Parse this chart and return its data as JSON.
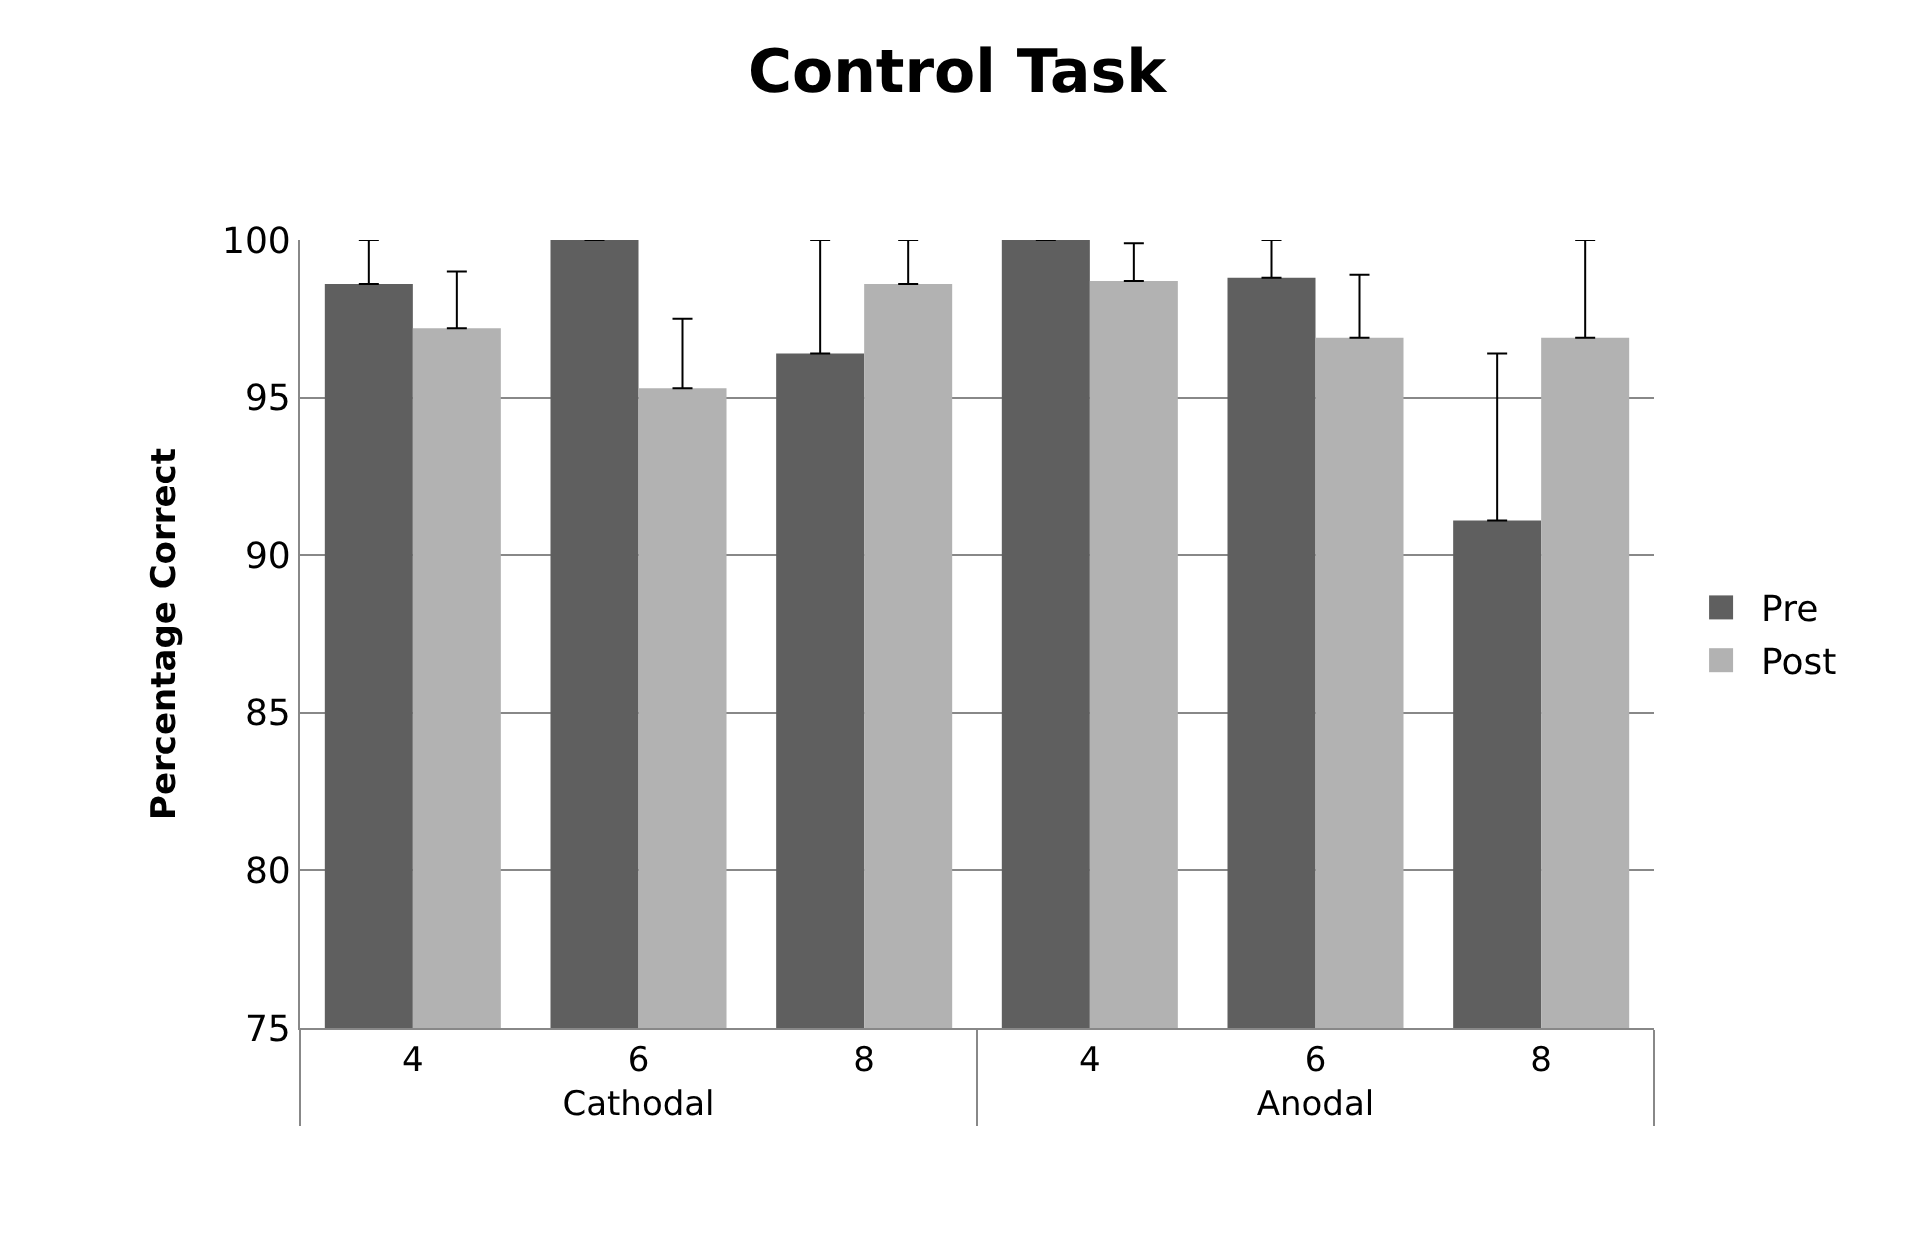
{
  "chart_data": {
    "type": "bar",
    "title": "Control Task",
    "ylabel": "Percentage Correct",
    "categories": [
      "4",
      "6",
      "8",
      "4",
      "6",
      "8"
    ],
    "annotations": [
      "Cathodal",
      "Anodal"
    ],
    "series": [
      {
        "name": "Pre",
        "color": "#5f5f5f",
        "values": [
          98.6,
          100,
          96.4,
          100,
          98.8,
          91.1
        ],
        "errors": [
          [
            98.6,
            100
          ],
          null,
          [
            96.4,
            100
          ],
          null,
          [
            98.8,
            100
          ],
          [
            91.1,
            96.4
          ]
        ]
      },
      {
        "name": "Post",
        "color": "#b2b2b2",
        "values": [
          97.2,
          95.3,
          98.6,
          98.7,
          96.9,
          96.9
        ],
        "errors": [
          [
            97.2,
            99.0
          ],
          [
            95.3,
            97.5
          ],
          [
            98.6,
            100
          ],
          [
            98.7,
            99.9
          ],
          [
            96.9,
            98.9
          ],
          [
            96.9,
            100
          ]
        ]
      }
    ],
    "ylim": [
      75,
      100
    ],
    "yticks": [
      75,
      80,
      85,
      90,
      95,
      100
    ],
    "grid": "y",
    "legend": "right"
  }
}
